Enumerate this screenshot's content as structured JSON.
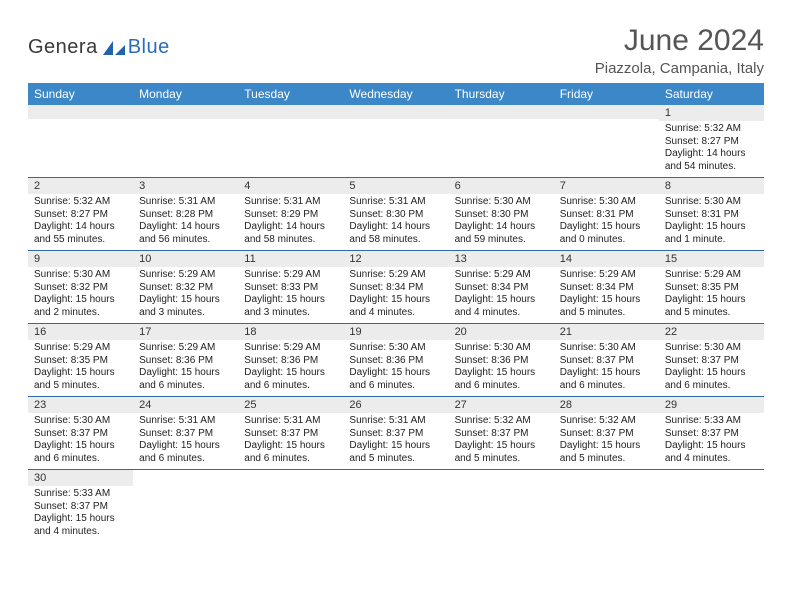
{
  "logo": {
    "text1": "Genera",
    "text2": "Blue"
  },
  "title": "June 2024",
  "location": "Piazzola, Campania, Italy",
  "colors": {
    "header_bg": "#3c87c7",
    "header_text": "#ffffff",
    "daynum_bg": "#ececec",
    "row_divider": "#2f6aa8",
    "title_color": "#555555",
    "body_text": "#222222",
    "logo_gray": "#3a3a3a",
    "logo_blue": "#2a6db8",
    "logo_triangle": "#1f64ad"
  },
  "day_names": [
    "Sunday",
    "Monday",
    "Tuesday",
    "Wednesday",
    "Thursday",
    "Friday",
    "Saturday"
  ],
  "weeks": [
    [
      {
        "n": "",
        "sr": "",
        "ss": "",
        "dl": ""
      },
      {
        "n": "",
        "sr": "",
        "ss": "",
        "dl": ""
      },
      {
        "n": "",
        "sr": "",
        "ss": "",
        "dl": ""
      },
      {
        "n": "",
        "sr": "",
        "ss": "",
        "dl": ""
      },
      {
        "n": "",
        "sr": "",
        "ss": "",
        "dl": ""
      },
      {
        "n": "",
        "sr": "",
        "ss": "",
        "dl": ""
      },
      {
        "n": "1",
        "sr": "Sunrise: 5:32 AM",
        "ss": "Sunset: 8:27 PM",
        "dl": "Daylight: 14 hours and 54 minutes."
      }
    ],
    [
      {
        "n": "2",
        "sr": "Sunrise: 5:32 AM",
        "ss": "Sunset: 8:27 PM",
        "dl": "Daylight: 14 hours and 55 minutes."
      },
      {
        "n": "3",
        "sr": "Sunrise: 5:31 AM",
        "ss": "Sunset: 8:28 PM",
        "dl": "Daylight: 14 hours and 56 minutes."
      },
      {
        "n": "4",
        "sr": "Sunrise: 5:31 AM",
        "ss": "Sunset: 8:29 PM",
        "dl": "Daylight: 14 hours and 58 minutes."
      },
      {
        "n": "5",
        "sr": "Sunrise: 5:31 AM",
        "ss": "Sunset: 8:30 PM",
        "dl": "Daylight: 14 hours and 58 minutes."
      },
      {
        "n": "6",
        "sr": "Sunrise: 5:30 AM",
        "ss": "Sunset: 8:30 PM",
        "dl": "Daylight: 14 hours and 59 minutes."
      },
      {
        "n": "7",
        "sr": "Sunrise: 5:30 AM",
        "ss": "Sunset: 8:31 PM",
        "dl": "Daylight: 15 hours and 0 minutes."
      },
      {
        "n": "8",
        "sr": "Sunrise: 5:30 AM",
        "ss": "Sunset: 8:31 PM",
        "dl": "Daylight: 15 hours and 1 minute."
      }
    ],
    [
      {
        "n": "9",
        "sr": "Sunrise: 5:30 AM",
        "ss": "Sunset: 8:32 PM",
        "dl": "Daylight: 15 hours and 2 minutes."
      },
      {
        "n": "10",
        "sr": "Sunrise: 5:29 AM",
        "ss": "Sunset: 8:32 PM",
        "dl": "Daylight: 15 hours and 3 minutes."
      },
      {
        "n": "11",
        "sr": "Sunrise: 5:29 AM",
        "ss": "Sunset: 8:33 PM",
        "dl": "Daylight: 15 hours and 3 minutes."
      },
      {
        "n": "12",
        "sr": "Sunrise: 5:29 AM",
        "ss": "Sunset: 8:34 PM",
        "dl": "Daylight: 15 hours and 4 minutes."
      },
      {
        "n": "13",
        "sr": "Sunrise: 5:29 AM",
        "ss": "Sunset: 8:34 PM",
        "dl": "Daylight: 15 hours and 4 minutes."
      },
      {
        "n": "14",
        "sr": "Sunrise: 5:29 AM",
        "ss": "Sunset: 8:34 PM",
        "dl": "Daylight: 15 hours and 5 minutes."
      },
      {
        "n": "15",
        "sr": "Sunrise: 5:29 AM",
        "ss": "Sunset: 8:35 PM",
        "dl": "Daylight: 15 hours and 5 minutes."
      }
    ],
    [
      {
        "n": "16",
        "sr": "Sunrise: 5:29 AM",
        "ss": "Sunset: 8:35 PM",
        "dl": "Daylight: 15 hours and 5 minutes."
      },
      {
        "n": "17",
        "sr": "Sunrise: 5:29 AM",
        "ss": "Sunset: 8:36 PM",
        "dl": "Daylight: 15 hours and 6 minutes."
      },
      {
        "n": "18",
        "sr": "Sunrise: 5:29 AM",
        "ss": "Sunset: 8:36 PM",
        "dl": "Daylight: 15 hours and 6 minutes."
      },
      {
        "n": "19",
        "sr": "Sunrise: 5:30 AM",
        "ss": "Sunset: 8:36 PM",
        "dl": "Daylight: 15 hours and 6 minutes."
      },
      {
        "n": "20",
        "sr": "Sunrise: 5:30 AM",
        "ss": "Sunset: 8:36 PM",
        "dl": "Daylight: 15 hours and 6 minutes."
      },
      {
        "n": "21",
        "sr": "Sunrise: 5:30 AM",
        "ss": "Sunset: 8:37 PM",
        "dl": "Daylight: 15 hours and 6 minutes."
      },
      {
        "n": "22",
        "sr": "Sunrise: 5:30 AM",
        "ss": "Sunset: 8:37 PM",
        "dl": "Daylight: 15 hours and 6 minutes."
      }
    ],
    [
      {
        "n": "23",
        "sr": "Sunrise: 5:30 AM",
        "ss": "Sunset: 8:37 PM",
        "dl": "Daylight: 15 hours and 6 minutes."
      },
      {
        "n": "24",
        "sr": "Sunrise: 5:31 AM",
        "ss": "Sunset: 8:37 PM",
        "dl": "Daylight: 15 hours and 6 minutes."
      },
      {
        "n": "25",
        "sr": "Sunrise: 5:31 AM",
        "ss": "Sunset: 8:37 PM",
        "dl": "Daylight: 15 hours and 6 minutes."
      },
      {
        "n": "26",
        "sr": "Sunrise: 5:31 AM",
        "ss": "Sunset: 8:37 PM",
        "dl": "Daylight: 15 hours and 5 minutes."
      },
      {
        "n": "27",
        "sr": "Sunrise: 5:32 AM",
        "ss": "Sunset: 8:37 PM",
        "dl": "Daylight: 15 hours and 5 minutes."
      },
      {
        "n": "28",
        "sr": "Sunrise: 5:32 AM",
        "ss": "Sunset: 8:37 PM",
        "dl": "Daylight: 15 hours and 5 minutes."
      },
      {
        "n": "29",
        "sr": "Sunrise: 5:33 AM",
        "ss": "Sunset: 8:37 PM",
        "dl": "Daylight: 15 hours and 4 minutes."
      }
    ],
    [
      {
        "n": "30",
        "sr": "Sunrise: 5:33 AM",
        "ss": "Sunset: 8:37 PM",
        "dl": "Daylight: 15 hours and 4 minutes."
      },
      {
        "n": "",
        "sr": "",
        "ss": "",
        "dl": ""
      },
      {
        "n": "",
        "sr": "",
        "ss": "",
        "dl": ""
      },
      {
        "n": "",
        "sr": "",
        "ss": "",
        "dl": ""
      },
      {
        "n": "",
        "sr": "",
        "ss": "",
        "dl": ""
      },
      {
        "n": "",
        "sr": "",
        "ss": "",
        "dl": ""
      },
      {
        "n": "",
        "sr": "",
        "ss": "",
        "dl": ""
      }
    ]
  ]
}
